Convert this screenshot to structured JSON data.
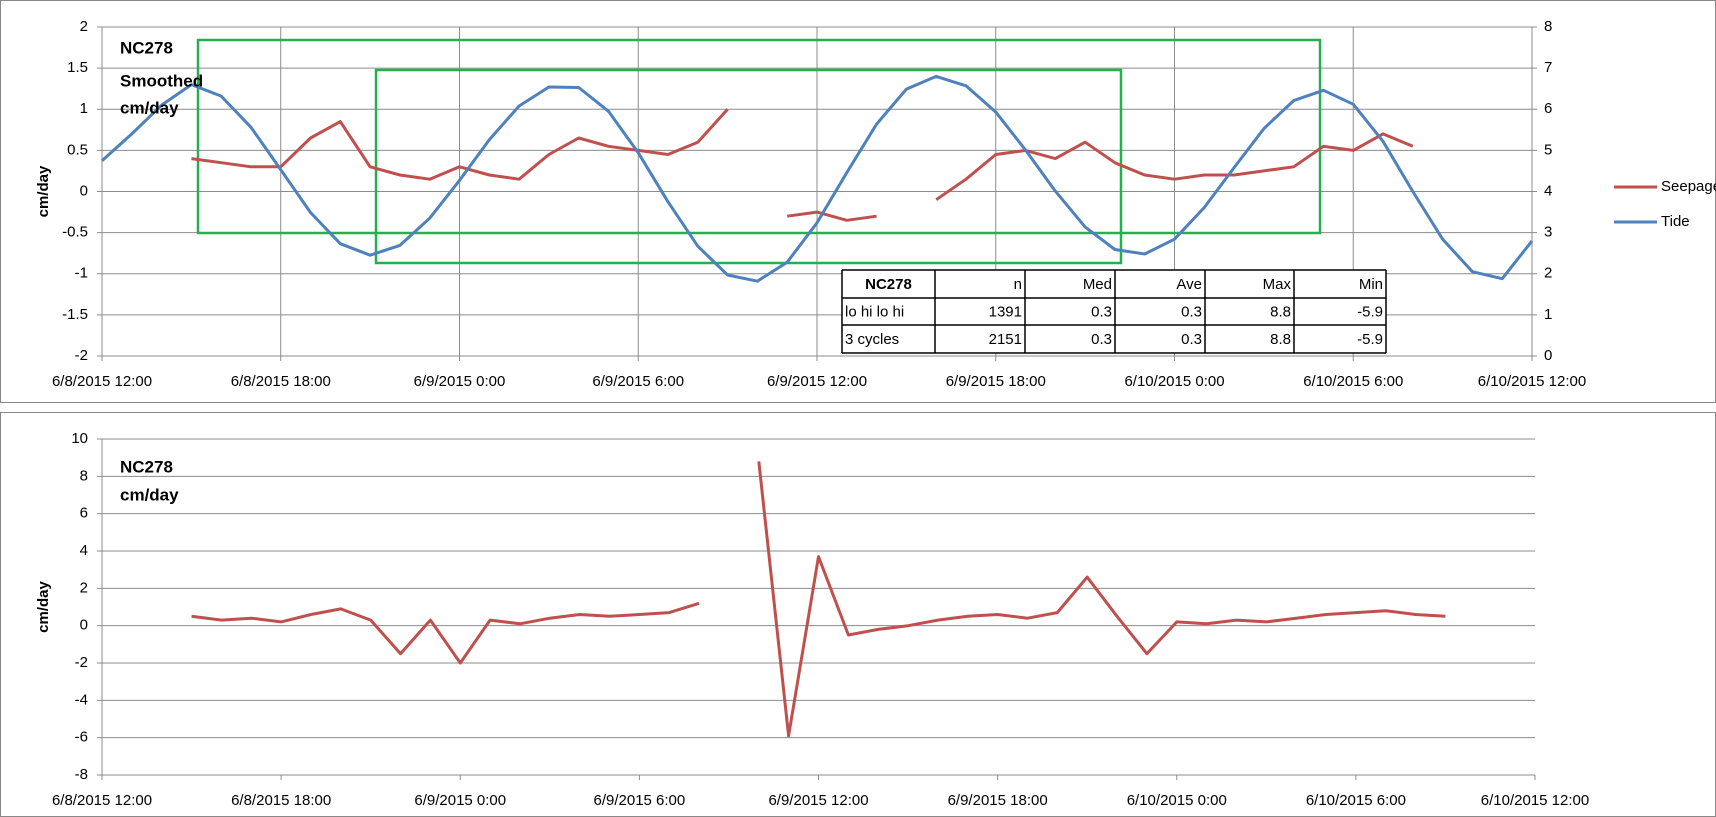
{
  "chart_data": [
    {
      "type": "line",
      "annotation": [
        "NC278",
        "Smoothed",
        "cm/day"
      ],
      "ylabel": "cm/day",
      "legend": "right",
      "grid": "both",
      "x": [
        "2015-06-08T12:00",
        "2015-06-08T13:00",
        "2015-06-08T14:00",
        "2015-06-08T15:00",
        "2015-06-08T16:00",
        "2015-06-08T17:00",
        "2015-06-08T18:00",
        "2015-06-08T19:00",
        "2015-06-08T20:00",
        "2015-06-08T21:00",
        "2015-06-08T22:00",
        "2015-06-08T23:00",
        "2015-06-09T00:00",
        "2015-06-09T01:00",
        "2015-06-09T02:00",
        "2015-06-09T03:00",
        "2015-06-09T04:00",
        "2015-06-09T05:00",
        "2015-06-09T06:00",
        "2015-06-09T07:00",
        "2015-06-09T08:00",
        "2015-06-09T09:00",
        "2015-06-09T10:00",
        "2015-06-09T11:00",
        "2015-06-09T12:00",
        "2015-06-09T13:00",
        "2015-06-09T14:00",
        "2015-06-09T15:00",
        "2015-06-09T16:00",
        "2015-06-09T17:00",
        "2015-06-09T18:00",
        "2015-06-09T19:00",
        "2015-06-09T20:00",
        "2015-06-09T21:00",
        "2015-06-09T22:00",
        "2015-06-09T23:00",
        "2015-06-10T00:00",
        "2015-06-10T01:00",
        "2015-06-10T02:00",
        "2015-06-10T03:00",
        "2015-06-10T04:00",
        "2015-06-10T05:00",
        "2015-06-10T06:00",
        "2015-06-10T07:00",
        "2015-06-10T08:00",
        "2015-06-10T09:00",
        "2015-06-10T10:00",
        "2015-06-10T11:00",
        "2015-06-10T12:00"
      ],
      "series": [
        {
          "name": "Seepage",
          "color": "#c0504d",
          "values": [
            null,
            null,
            null,
            0.4,
            0.35,
            0.3,
            0.3,
            0.65,
            0.85,
            0.3,
            0.2,
            0.15,
            0.3,
            0.2,
            0.15,
            0.45,
            0.65,
            0.55,
            0.5,
            0.45,
            0.6,
            1.0,
            null,
            -0.3,
            -0.25,
            -0.35,
            -0.3,
            null,
            -0.1,
            0.15,
            0.45,
            0.5,
            0.4,
            0.6,
            0.35,
            0.2,
            0.15,
            0.2,
            0.2,
            0.25,
            0.3,
            0.55,
            0.5,
            0.7,
            0.55,
            null,
            null,
            null,
            null
          ]
        },
        {
          "name": "Tide",
          "color": "#4f81bd",
          "axis": "y2",
          "values": [
            4.75,
            5.4,
            6.1,
            6.6,
            6.32,
            5.56,
            4.53,
            3.49,
            2.73,
            2.45,
            2.69,
            3.35,
            4.27,
            5.26,
            6.08,
            6.54,
            6.53,
            5.95,
            4.94,
            3.75,
            2.67,
            1.97,
            1.82,
            2.28,
            3.24,
            4.46,
            5.64,
            6.49,
            6.8,
            6.57,
            5.93,
            5.01,
            4.01,
            3.14,
            2.59,
            2.48,
            2.84,
            3.61,
            4.58,
            5.53,
            6.21,
            6.46,
            6.12,
            5.22,
            4.0,
            2.84,
            2.05,
            1.88,
            2.8
          ]
        }
      ],
      "xlim": [
        "2015-06-08T12:00",
        "2015-06-10T12:00"
      ],
      "xticks": [
        {
          "value": "2015-06-08T12:00",
          "label": "6/8/2015 12:00"
        },
        {
          "value": "2015-06-08T18:00",
          "label": "6/8/2015 18:00"
        },
        {
          "value": "2015-06-09T00:00",
          "label": "6/9/2015 0:00"
        },
        {
          "value": "2015-06-09T06:00",
          "label": "6/9/2015 6:00"
        },
        {
          "value": "2015-06-09T12:00",
          "label": "6/9/2015 12:00"
        },
        {
          "value": "2015-06-09T18:00",
          "label": "6/9/2015 18:00"
        },
        {
          "value": "2015-06-10T00:00",
          "label": "6/10/2015 0:00"
        },
        {
          "value": "2015-06-10T06:00",
          "label": "6/10/2015 6:00"
        },
        {
          "value": "2015-06-10T12:00",
          "label": "6/10/2015 12:00"
        }
      ],
      "ylim": [
        -2,
        2
      ],
      "yticks": [
        -2,
        -1.5,
        -1,
        -0.5,
        0,
        0.5,
        1,
        1.5,
        2
      ],
      "y2lim": [
        0,
        8
      ],
      "y2ticks": [
        0,
        1,
        2,
        3,
        4,
        5,
        6,
        7,
        8
      ],
      "table": {
        "header": [
          "NC278",
          "n",
          "Med",
          "Ave",
          "Max",
          "Min"
        ],
        "rows": [
          [
            "lo hi lo hi",
            1391,
            0.3,
            0.3,
            8.8,
            -5.9
          ],
          [
            "3 cycles",
            2151,
            0.3,
            0.3,
            8.8,
            -5.9
          ]
        ]
      }
    },
    {
      "type": "line",
      "annotation": [
        "NC278",
        "cm/day"
      ],
      "ylabel": "cm/day",
      "grid": "y",
      "x": [
        "2015-06-08T12:00",
        "2015-06-08T13:00",
        "2015-06-08T14:00",
        "2015-06-08T15:00",
        "2015-06-08T16:00",
        "2015-06-08T17:00",
        "2015-06-08T18:00",
        "2015-06-08T19:00",
        "2015-06-08T20:00",
        "2015-06-08T21:00",
        "2015-06-08T22:00",
        "2015-06-08T23:00",
        "2015-06-09T00:00",
        "2015-06-09T01:00",
        "2015-06-09T02:00",
        "2015-06-09T03:00",
        "2015-06-09T04:00",
        "2015-06-09T05:00",
        "2015-06-09T06:00",
        "2015-06-09T07:00",
        "2015-06-09T08:00",
        "2015-06-09T09:00",
        "2015-06-09T10:00",
        "2015-06-09T11:00",
        "2015-06-09T12:00",
        "2015-06-09T13:00",
        "2015-06-09T14:00",
        "2015-06-09T15:00",
        "2015-06-09T16:00",
        "2015-06-09T17:00",
        "2015-06-09T18:00",
        "2015-06-09T19:00",
        "2015-06-09T20:00",
        "2015-06-09T21:00",
        "2015-06-09T22:00",
        "2015-06-09T23:00",
        "2015-06-10T00:00",
        "2015-06-10T01:00",
        "2015-06-10T02:00",
        "2015-06-10T03:00",
        "2015-06-10T04:00",
        "2015-06-10T05:00",
        "2015-06-10T06:00",
        "2015-06-10T07:00",
        "2015-06-10T08:00",
        "2015-06-10T09:00",
        "2015-06-10T10:00",
        "2015-06-10T11:00",
        "2015-06-10T12:00"
      ],
      "series": [
        {
          "color": "#c0504d",
          "values": [
            null,
            null,
            null,
            0.5,
            0.3,
            0.4,
            0.2,
            0.6,
            0.9,
            0.3,
            -1.5,
            0.3,
            -2.0,
            0.3,
            0.1,
            0.4,
            0.6,
            0.5,
            0.6,
            0.7,
            1.2,
            null,
            8.8,
            -5.9,
            3.7,
            -0.5,
            -0.2,
            0.0,
            0.3,
            0.5,
            0.6,
            0.4,
            0.7,
            2.6,
            0.5,
            -1.5,
            0.2,
            0.1,
            0.3,
            0.2,
            0.4,
            0.6,
            0.7,
            0.8,
            0.6,
            0.5,
            null,
            null,
            null
          ]
        }
      ],
      "xlim": [
        "2015-06-08T12:00",
        "2015-06-10T12:00"
      ],
      "xticks": [
        {
          "value": "2015-06-08T12:00",
          "label": "6/8/2015 12:00"
        },
        {
          "value": "2015-06-08T18:00",
          "label": "6/8/2015 18:00"
        },
        {
          "value": "2015-06-09T00:00",
          "label": "6/9/2015 0:00"
        },
        {
          "value": "2015-06-09T06:00",
          "label": "6/9/2015 6:00"
        },
        {
          "value": "2015-06-09T12:00",
          "label": "6/9/2015 12:00"
        },
        {
          "value": "2015-06-09T18:00",
          "label": "6/9/2015 18:00"
        },
        {
          "value": "2015-06-10T00:00",
          "label": "6/10/2015 0:00"
        },
        {
          "value": "2015-06-10T06:00",
          "label": "6/10/2015 6:00"
        },
        {
          "value": "2015-06-10T12:00",
          "label": "6/10/2015 12:00"
        }
      ],
      "ylim": [
        -8,
        10
      ],
      "yticks": [
        -8,
        -6,
        -4,
        -2,
        0,
        2,
        4,
        6,
        8,
        10
      ]
    }
  ]
}
